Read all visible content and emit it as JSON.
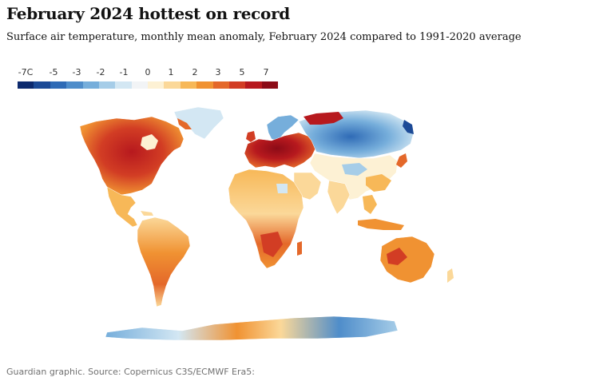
{
  "header": {
    "title": "February 2024 hottest on record",
    "subtitle": "Surface air temperature, monthly mean anomaly, February 2024 compared to 1991-2020 average"
  },
  "legend": {
    "labels": [
      "-7C",
      "-5",
      "-3",
      "-2",
      "-1",
      "0",
      "1",
      "2",
      "3",
      "5",
      "7"
    ],
    "colors": [
      "#0d2a6e",
      "#1c4a96",
      "#2f6bb6",
      "#4f8dca",
      "#76aedb",
      "#a6cde8",
      "#d3e7f3",
      "#f2f4f6",
      "#fdf1d4",
      "#fbd899",
      "#f7b858",
      "#f09232",
      "#e4682a",
      "#d23d24",
      "#b7191e",
      "#8c0b17"
    ]
  },
  "map": {
    "regions": [
      {
        "name": "Canada",
        "anomaly": "strong warm"
      },
      {
        "name": "Europe",
        "anomaly": "strong warm"
      },
      {
        "name": "Siberia",
        "anomaly": "cold"
      },
      {
        "name": "Scandinavia",
        "anomaly": "cold"
      },
      {
        "name": "Africa",
        "anomaly": "warm"
      },
      {
        "name": "South America",
        "anomaly": "warm"
      },
      {
        "name": "Australia",
        "anomaly": "warm"
      },
      {
        "name": "Antarctica",
        "anomaly": "mixed"
      }
    ]
  },
  "footer": {
    "source": "Guardian graphic. Source: Copernicus C3S/ECMWF Era5:"
  }
}
